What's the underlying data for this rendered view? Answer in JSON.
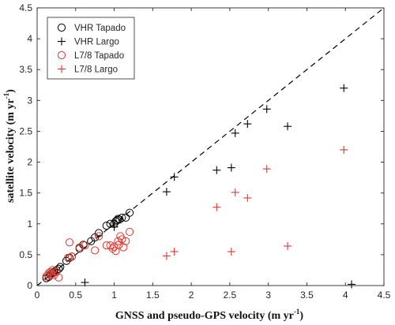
{
  "chart_data": {
    "type": "scatter",
    "title": "",
    "xlabel": "GNSS and pseudo-GPS velocity (m yr",
    "xlabel_sup": "-1",
    "xlabel_end": ")",
    "ylabel": "satellite velocity (m yr",
    "ylabel_sup": "-1",
    "ylabel_end": ")",
    "xlim": [
      0,
      4.5
    ],
    "ylim": [
      0,
      4.5
    ],
    "x_ticks": [
      "0",
      "0.5",
      "1",
      "1.5",
      "2",
      "2.5",
      "3",
      "3.5",
      "4",
      "4.5"
    ],
    "y_ticks": [
      "0",
      "0.5",
      "1",
      "1.5",
      "2",
      "2.5",
      "3",
      "3.5",
      "4",
      "4.5"
    ],
    "grid": false,
    "legend_position": "top-left",
    "reference_line": {
      "style": "dashed",
      "color": "#000000",
      "points": [
        [
          0,
          0
        ],
        [
          4.5,
          4.5
        ]
      ]
    },
    "series": [
      {
        "name": "VHR Tapado",
        "marker": "circle",
        "color": "#000000",
        "points": [
          [
            0.12,
            0.12
          ],
          [
            0.15,
            0.14
          ],
          [
            0.17,
            0.18
          ],
          [
            0.2,
            0.2
          ],
          [
            0.22,
            0.22
          ],
          [
            0.25,
            0.25
          ],
          [
            0.28,
            0.27
          ],
          [
            0.3,
            0.3
          ],
          [
            0.38,
            0.4
          ],
          [
            0.42,
            0.45
          ],
          [
            0.45,
            0.47
          ],
          [
            0.55,
            0.6
          ],
          [
            0.6,
            0.66
          ],
          [
            0.7,
            0.72
          ],
          [
            0.75,
            0.78
          ],
          [
            0.8,
            0.85
          ],
          [
            0.9,
            0.97
          ],
          [
            0.95,
            1.0
          ],
          [
            1.0,
            1.0
          ],
          [
            1.02,
            1.04
          ],
          [
            1.04,
            1.06
          ],
          [
            1.05,
            1.08
          ],
          [
            1.07,
            1.07
          ],
          [
            1.1,
            1.1
          ],
          [
            1.15,
            1.1
          ],
          [
            1.2,
            1.18
          ]
        ]
      },
      {
        "name": "VHR Largo",
        "marker": "plus",
        "color": "#000000",
        "points": [
          [
            0.62,
            0.05
          ],
          [
            1.0,
            0.95
          ],
          [
            1.68,
            1.52
          ],
          [
            1.78,
            1.76
          ],
          [
            2.33,
            1.87
          ],
          [
            2.52,
            1.91
          ],
          [
            2.57,
            2.47
          ],
          [
            2.73,
            2.62
          ],
          [
            2.98,
            2.86
          ],
          [
            3.25,
            2.58
          ],
          [
            3.98,
            3.2
          ],
          [
            4.08,
            0.02
          ]
        ]
      },
      {
        "name": "L7/8 Tapado",
        "marker": "circle",
        "color": "#e8332b",
        "points": [
          [
            0.12,
            0.15
          ],
          [
            0.15,
            0.2
          ],
          [
            0.17,
            0.22
          ],
          [
            0.18,
            0.18
          ],
          [
            0.2,
            0.25
          ],
          [
            0.22,
            0.17
          ],
          [
            0.25,
            0.22
          ],
          [
            0.28,
            0.13
          ],
          [
            0.4,
            0.45
          ],
          [
            0.42,
            0.7
          ],
          [
            0.45,
            0.47
          ],
          [
            0.55,
            0.62
          ],
          [
            0.62,
            0.65
          ],
          [
            0.75,
            0.57
          ],
          [
            0.8,
            0.8
          ],
          [
            0.9,
            0.65
          ],
          [
            0.95,
            0.65
          ],
          [
            0.98,
            0.6
          ],
          [
            1.0,
            0.63
          ],
          [
            1.02,
            0.56
          ],
          [
            1.05,
            0.72
          ],
          [
            1.06,
            0.66
          ],
          [
            1.08,
            0.8
          ],
          [
            1.1,
            0.75
          ],
          [
            1.12,
            0.62
          ],
          [
            1.15,
            0.72
          ],
          [
            1.2,
            0.87
          ]
        ]
      },
      {
        "name": "L7/8 Largo",
        "marker": "plus",
        "color": "#e8332b",
        "points": [
          [
            1.68,
            0.48
          ],
          [
            1.78,
            0.55
          ],
          [
            2.33,
            1.27
          ],
          [
            2.52,
            0.55
          ],
          [
            2.57,
            1.51
          ],
          [
            2.73,
            1.42
          ],
          [
            2.98,
            1.89
          ],
          [
            3.25,
            0.64
          ],
          [
            3.98,
            2.2
          ]
        ]
      }
    ]
  }
}
